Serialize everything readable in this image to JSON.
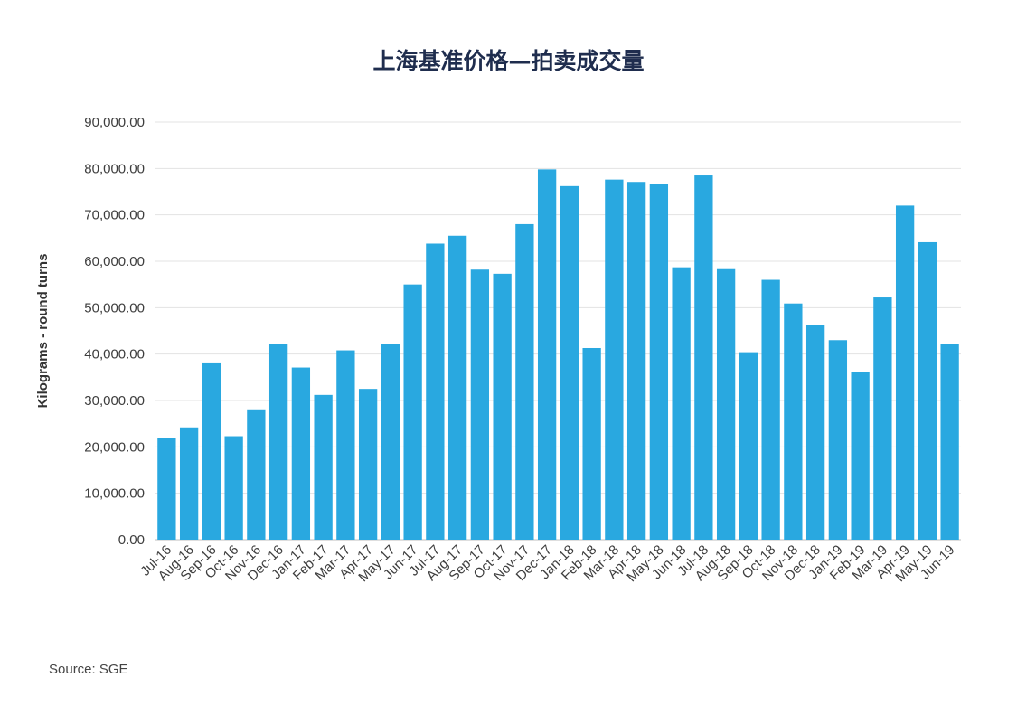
{
  "title": "上海基准价格—拍卖成交量",
  "source": "Source: SGE",
  "chart_data": {
    "type": "bar",
    "title": "上海基准价格—拍卖成交量",
    "xlabel": "",
    "ylabel": "Kilograms - round turns",
    "ylim": [
      0,
      90000
    ],
    "yticks": [
      "0.00",
      "10,000.00",
      "20,000.00",
      "30,000.00",
      "40,000.00",
      "50,000.00",
      "60,000.00",
      "70,000.00",
      "80,000.00",
      "90,000.00"
    ],
    "grid": true,
    "bar_color": "#29a8e0",
    "categories": [
      "Jul-16",
      "Aug-16",
      "Sep-16",
      "Oct-16",
      "Nov-16",
      "Dec-16",
      "Jan-17",
      "Feb-17",
      "Mar-17",
      "Apr-17",
      "May-17",
      "Jun-17",
      "Jul-17",
      "Aug-17",
      "Sep-17",
      "Oct-17",
      "Nov-17",
      "Dec-17",
      "Jan-18",
      "Feb-18",
      "Mar-18",
      "Apr-18",
      "May-18",
      "Jun-18",
      "Jul-18",
      "Aug-18",
      "Sep-18",
      "Oct-18",
      "Nov-18",
      "Dec-18",
      "Jan-19",
      "Feb-19",
      "Mar-19",
      "Apr-19",
      "May-19",
      "Jun-19"
    ],
    "values": [
      22000,
      24200,
      38000,
      22300,
      27900,
      42200,
      37100,
      31200,
      40800,
      32500,
      42200,
      55000,
      63800,
      65500,
      58200,
      57300,
      68000,
      79800,
      76200,
      41300,
      77600,
      77100,
      76700,
      58700,
      78500,
      58300,
      40400,
      56000,
      50900,
      46200,
      43000,
      36200,
      52200,
      72000,
      64100,
      42100
    ]
  }
}
